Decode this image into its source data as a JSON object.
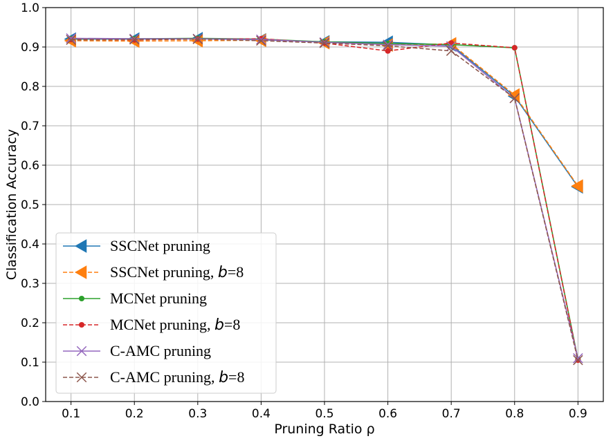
{
  "chart_data": {
    "type": "line",
    "title": "",
    "xlabel": "Pruning Ratio ρ",
    "ylabel": "Classification Accuracy",
    "xlim": [
      0.06,
      0.94
    ],
    "ylim": [
      0.0,
      1.0
    ],
    "x_ticks": [
      "0.1",
      "0.2",
      "0.3",
      "0.4",
      "0.5",
      "0.6",
      "0.7",
      "0.8",
      "0.9"
    ],
    "y_ticks": [
      "0.0",
      "0.1",
      "0.2",
      "0.3",
      "0.4",
      "0.5",
      "0.6",
      "0.7",
      "0.8",
      "0.9",
      "1.0"
    ],
    "grid": true,
    "legend_position": "lower-left",
    "x": [
      0.1,
      0.2,
      0.3,
      0.4,
      0.5,
      0.6,
      0.7,
      0.8,
      0.9
    ],
    "series": [
      {
        "name": "SSCNet pruning",
        "legend_suffix": "",
        "color": "#1f77b4",
        "marker": "triangle-left",
        "dashed": false,
        "values": [
          0.92,
          0.92,
          0.921,
          0.918,
          0.913,
          0.912,
          0.905,
          0.775,
          0.545
        ]
      },
      {
        "name": "SSCNet pruning",
        "legend_suffix": "8",
        "color": "#ff7f0e",
        "marker": "triangle-left",
        "dashed": true,
        "values": [
          0.916,
          0.915,
          0.916,
          0.917,
          0.911,
          0.905,
          0.908,
          0.778,
          0.547
        ]
      },
      {
        "name": "MCNet pruning",
        "legend_suffix": "",
        "color": "#2ca02c",
        "marker": "dot",
        "dashed": false,
        "values": [
          0.921,
          0.921,
          0.922,
          0.92,
          0.913,
          0.909,
          0.906,
          0.898,
          0.107
        ]
      },
      {
        "name": "MCNet pruning",
        "legend_suffix": "8",
        "color": "#d62728",
        "marker": "dot",
        "dashed": true,
        "values": [
          0.919,
          0.918,
          0.92,
          0.921,
          0.91,
          0.89,
          0.91,
          0.898,
          0.105
        ]
      },
      {
        "name": "C-AMC pruning",
        "legend_suffix": "",
        "color": "#9467bd",
        "marker": "x",
        "dashed": false,
        "values": [
          0.922,
          0.921,
          0.921,
          0.919,
          0.912,
          0.906,
          0.902,
          0.77,
          0.11
        ]
      },
      {
        "name": "C-AMC pruning",
        "legend_suffix": "8",
        "color": "#8c564b",
        "marker": "x",
        "dashed": true,
        "values": [
          0.918,
          0.919,
          0.92,
          0.916,
          0.91,
          0.903,
          0.89,
          0.77,
          0.105
        ]
      }
    ]
  },
  "legend_param": {
    "var": "b",
    "eq": "="
  }
}
